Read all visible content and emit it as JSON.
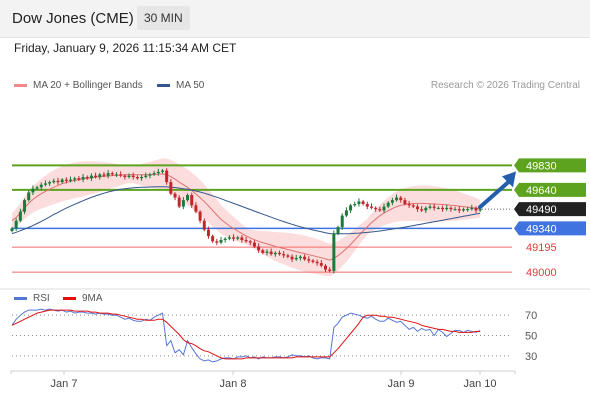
{
  "header": {
    "title": "Dow Jones (CME)",
    "timeframe": "30 MIN"
  },
  "timestamp": "Friday, January 9, 2026 11:15:34 AM CET",
  "legend": {
    "ma20": "MA 20 + Bollinger Bands",
    "ma50": "MA 50",
    "rsi": "RSI",
    "ma9": "9MA"
  },
  "copyright": "Research © 2026 Trading Central",
  "colors": {
    "resistance": "#5ea31f",
    "support": "#3f73e0",
    "pivot": "#f26b6b",
    "last": "#222222",
    "ma50": "#34568c",
    "ma20": "#e07070",
    "bb": "#fcd9d9",
    "bull": "#1a7a3a",
    "bear": "#c0262c",
    "arrow": "#245fad",
    "rsi": "#5577d4",
    "ma9": "#e01010"
  },
  "chart_data": [
    {
      "type": "candlestick",
      "x_ticks": [
        "Jan 7",
        "Jan 8",
        "Jan 9",
        "Jan 10"
      ],
      "price_ylim": [
        48900,
        50300
      ],
      "levels": [
        {
          "value": 49830,
          "label": "49830",
          "kind": "resistance"
        },
        {
          "value": 49640,
          "label": "49640",
          "kind": "resistance"
        },
        {
          "value": 49490,
          "label": "49490",
          "kind": "last"
        },
        {
          "value": 49340,
          "label": "49340",
          "kind": "support"
        },
        {
          "value": 49195,
          "label": "49195",
          "kind": "support"
        },
        {
          "value": 49000,
          "label": "49000",
          "kind": "support"
        }
      ],
      "close": [
        49340,
        49400,
        49470,
        49560,
        49620,
        49650,
        49660,
        49680,
        49690,
        49700,
        49710,
        49700,
        49720,
        49710,
        49720,
        49730,
        49720,
        49740,
        49730,
        49750,
        49740,
        49760,
        49750,
        49770,
        49760,
        49760,
        49750,
        49740,
        49750,
        49740,
        49730,
        49740,
        49750,
        49760,
        49770,
        49780,
        49790,
        49700,
        49610,
        49580,
        49510,
        49560,
        49600,
        49520,
        49470,
        49400,
        49330,
        49280,
        49240,
        49230,
        49250,
        49260,
        49270,
        49260,
        49270,
        49250,
        49240,
        49230,
        49200,
        49170,
        49150,
        49160,
        49140,
        49150,
        49140,
        49130,
        49120,
        49100,
        49110,
        49120,
        49100,
        49090,
        49080,
        49070,
        49050,
        49020,
        49010,
        49300,
        49350,
        49440,
        49480,
        49520,
        49530,
        49550,
        49530,
        49510,
        49500,
        49490,
        49480,
        49510,
        49540,
        49560,
        49580,
        49560,
        49530,
        49520,
        49510,
        49490,
        49480,
        49500,
        49510,
        49500,
        49500,
        49490,
        49500,
        49490,
        49490,
        49480,
        49490,
        49490,
        49500,
        49480,
        49490
      ],
      "ma20": [
        49400,
        49425,
        49460,
        49500,
        49535,
        49565,
        49590,
        49610,
        49628,
        49645,
        49660,
        49675,
        49688,
        49698,
        49706,
        49714,
        49720,
        49725,
        49730,
        49734,
        49738,
        49742,
        49745,
        49748,
        49751,
        49753,
        49755,
        49757,
        49758,
        49759,
        49758,
        49757,
        49757,
        49758,
        49760,
        49762,
        49764,
        49758,
        49742,
        49724,
        49700,
        49680,
        49660,
        49635,
        49608,
        49580,
        49548,
        49515,
        49480,
        49445,
        49410,
        49385,
        49360,
        49340,
        49320,
        49300,
        49282,
        49266,
        49252,
        49240,
        49230,
        49220,
        49210,
        49200,
        49192,
        49184,
        49176,
        49168,
        49160,
        49152,
        49144,
        49136,
        49128,
        49120,
        49112,
        49103,
        49094,
        49108,
        49128,
        49155,
        49182,
        49215,
        49250,
        49285,
        49320,
        49352,
        49385,
        49412,
        49438,
        49460,
        49478,
        49495,
        49510,
        49520,
        49527,
        49531,
        49534,
        49535,
        49535,
        49534,
        49532,
        49530,
        49528,
        49526,
        49524,
        49521,
        49518,
        49514,
        49510,
        49506,
        49502,
        49498,
        49494
      ],
      "ma50": [
        49300,
        49310,
        49322,
        49335,
        49348,
        49362,
        49378,
        49395,
        49412,
        49430,
        49448,
        49465,
        49482,
        49498,
        49513,
        49528,
        49542,
        49556,
        49569,
        49581,
        49593,
        49604,
        49614,
        49623,
        49631,
        49638,
        49644,
        49649,
        49653,
        49656,
        49658,
        49660,
        49661,
        49662,
        49663,
        49664,
        49664,
        49663,
        49661,
        49658,
        49654,
        49649,
        49644,
        49638,
        49631,
        49623,
        49614,
        49604,
        49594,
        49583,
        49571,
        49559,
        49547,
        49535,
        49523,
        49511,
        49499,
        49487,
        49475,
        49463,
        49451,
        49439,
        49427,
        49415,
        49404,
        49393,
        49382,
        49372,
        49362,
        49353,
        49344,
        49336,
        49328,
        49321,
        49314,
        49307,
        49300,
        49299,
        49298,
        49298,
        49299,
        49300,
        49302,
        49304,
        49306,
        49309,
        49312,
        49316,
        49320,
        49325,
        49330,
        49335,
        49340,
        49345,
        49350,
        49356,
        49362,
        49368,
        49374,
        49380,
        49386,
        49392,
        49398,
        49404,
        49410,
        49416,
        49422,
        49428,
        49434,
        49440,
        49446,
        49452,
        49458
      ],
      "forecast": [
        49490,
        49830
      ]
    },
    {
      "type": "line",
      "name": "RSI",
      "ylim": [
        20,
        80
      ],
      "y_ticks": [
        "70",
        "50",
        "30"
      ],
      "rsi": [
        60,
        66,
        70,
        73,
        75,
        75,
        75,
        76,
        75,
        76,
        75,
        74,
        75,
        73,
        74,
        72,
        73,
        73,
        72,
        72,
        71,
        72,
        71,
        71,
        70,
        70,
        68,
        66,
        67,
        65,
        64,
        64,
        66,
        65,
        68,
        70,
        72,
        40,
        45,
        33,
        36,
        31,
        45,
        38,
        32,
        27,
        25,
        26,
        24,
        25,
        27,
        28,
        28,
        27,
        29,
        29,
        30,
        28,
        29,
        27,
        29,
        28,
        28,
        29,
        29,
        28,
        29,
        31,
        30,
        30,
        29,
        30,
        28,
        27,
        28,
        28,
        27,
        58,
        62,
        68,
        70,
        72,
        71,
        70,
        68,
        67,
        69,
        66,
        64,
        64,
        67,
        65,
        63,
        64,
        60,
        56,
        58,
        54,
        57,
        55,
        56,
        50,
        56,
        53,
        49,
        52,
        55,
        55,
        53,
        55,
        54,
        53,
        55
      ],
      "ma9": [
        60,
        62,
        64,
        66,
        68,
        70,
        72,
        73,
        74,
        75,
        75,
        75,
        75,
        75,
        75,
        74,
        74,
        74,
        74,
        73,
        73,
        72,
        72,
        72,
        71,
        71,
        70,
        69,
        68,
        67,
        66,
        66,
        65,
        65,
        65,
        66,
        66,
        63,
        59,
        55,
        51,
        46,
        43,
        42,
        40,
        37,
        35,
        34,
        32,
        30,
        28,
        27,
        27,
        27,
        27,
        27,
        28,
        28,
        28,
        28,
        28,
        28,
        28,
        28,
        28,
        28,
        28,
        28,
        29,
        29,
        29,
        29,
        29,
        29,
        29,
        29,
        29,
        33,
        37,
        42,
        47,
        52,
        57,
        62,
        68,
        70,
        70,
        70,
        69,
        69,
        68,
        68,
        67,
        66,
        65,
        64,
        63,
        62,
        60,
        59,
        58,
        57,
        56,
        56,
        55,
        54,
        54,
        53,
        53,
        53,
        53,
        54,
        54
      ]
    }
  ]
}
